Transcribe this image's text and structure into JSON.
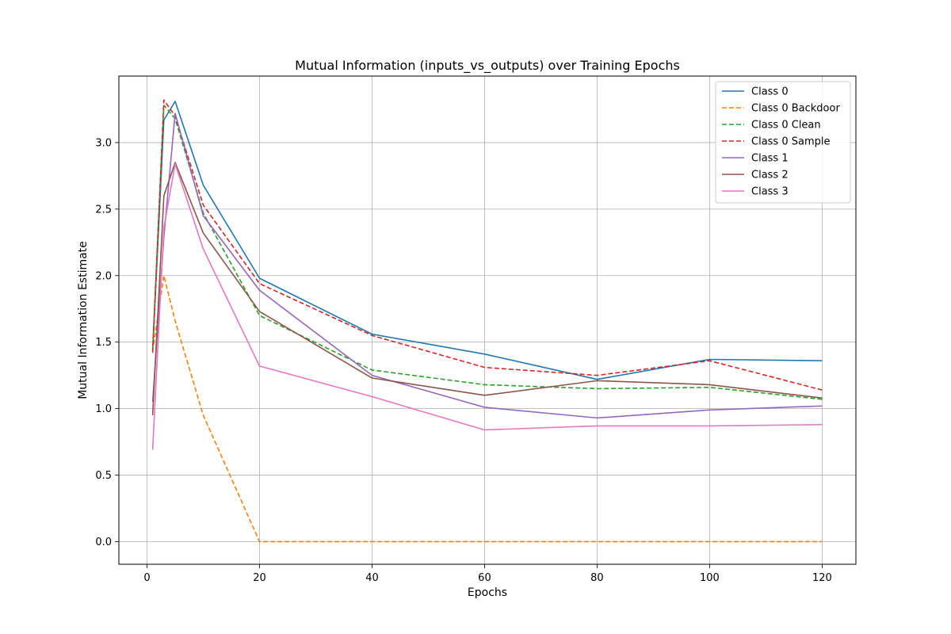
{
  "chart_data": {
    "type": "line",
    "title": "Mutual Information (inputs_vs_outputs) over Training Epochs",
    "xlabel": "Epochs",
    "ylabel": "Mutual Information Estimate",
    "xlim": [
      -5,
      126
    ],
    "ylim": [
      -0.17,
      3.5
    ],
    "xticks": [
      0,
      20,
      40,
      60,
      80,
      100,
      120
    ],
    "yticks": [
      0.0,
      0.5,
      1.0,
      1.5,
      2.0,
      2.5,
      3.0
    ],
    "grid": true,
    "legend_position": "top-right",
    "x": [
      1,
      3,
      5,
      10,
      20,
      40,
      60,
      80,
      100,
      120
    ],
    "series": [
      {
        "name": "Class 0",
        "color": "#1f77b4",
        "dash": "solid",
        "values": [
          1.43,
          3.17,
          3.31,
          2.68,
          1.98,
          1.56,
          1.41,
          1.22,
          1.37,
          1.36
        ]
      },
      {
        "name": "Class 0 Backdoor",
        "color": "#ff7f0e",
        "dash": "dashed",
        "values": [
          1.43,
          2.0,
          1.66,
          0.95,
          0.0,
          0.0,
          0.0,
          0.0,
          0.0,
          0.0
        ]
      },
      {
        "name": "Class 0 Clean",
        "color": "#2ca02c",
        "dash": "dashed",
        "values": [
          1.45,
          3.28,
          3.18,
          2.47,
          1.7,
          1.29,
          1.18,
          1.15,
          1.16,
          1.07
        ]
      },
      {
        "name": "Class 0 Sample",
        "color": "#d62728",
        "dash": "dashed",
        "values": [
          1.42,
          3.32,
          3.2,
          2.53,
          1.94,
          1.55,
          1.31,
          1.25,
          1.36,
          1.14
        ]
      },
      {
        "name": "Class 1",
        "color": "#9467bd",
        "dash": "solid",
        "values": [
          1.05,
          2.29,
          3.22,
          2.45,
          1.89,
          1.25,
          1.01,
          0.93,
          0.99,
          1.02
        ]
      },
      {
        "name": "Class 2",
        "color": "#8c564b",
        "dash": "solid",
        "values": [
          0.95,
          2.6,
          2.85,
          2.32,
          1.73,
          1.23,
          1.1,
          1.21,
          1.18,
          1.08
        ]
      },
      {
        "name": "Class 3",
        "color": "#e377c2",
        "dash": "solid",
        "values": [
          0.69,
          2.36,
          2.84,
          2.2,
          1.32,
          1.09,
          0.84,
          0.87,
          0.87,
          0.88
        ]
      }
    ]
  }
}
